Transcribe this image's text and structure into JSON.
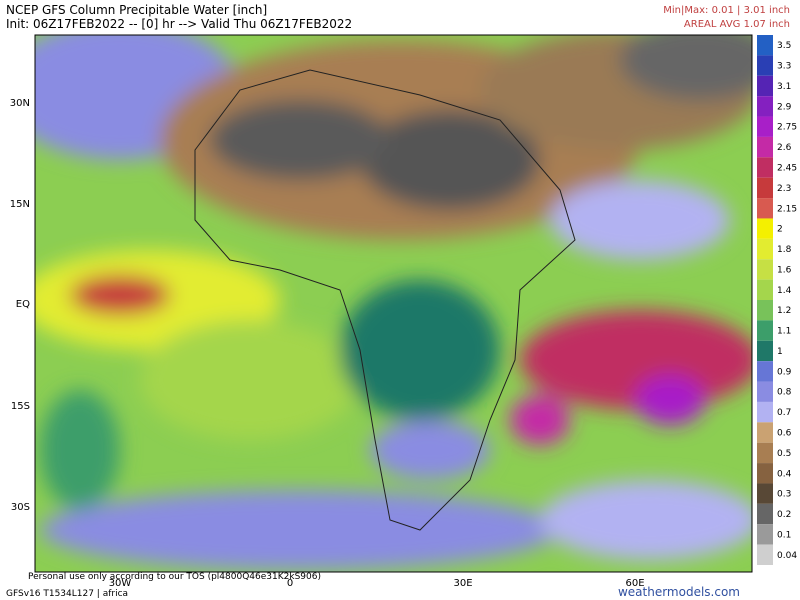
{
  "header": {
    "title": "NCEP GFS Column Precipitable Water [inch]",
    "subtitle": "Init: 06Z17FEB2022 -- [0] hr --> Valid Thu 06Z17FEB2022",
    "minmax": "Min|Max: 0.01 | 3.01 inch",
    "areal_avg": "AREAL AVG 1.07 inch"
  },
  "lat_labels": [
    "30N",
    "15N",
    "EQ",
    "15S",
    "30S"
  ],
  "lon_labels": [
    "30W",
    "0",
    "30E",
    "60E"
  ],
  "colorbar": [
    {
      "label": "3.5",
      "color": "#2360c4"
    },
    {
      "label": "3.3",
      "color": "#2a3fb4"
    },
    {
      "label": "3.1",
      "color": "#5524b4"
    },
    {
      "label": "2.9",
      "color": "#8420c0"
    },
    {
      "label": "2.75",
      "color": "#a81fc8"
    },
    {
      "label": "2.6",
      "color": "#c42aa6"
    },
    {
      "label": "2.45",
      "color": "#c02e62"
    },
    {
      "label": "2.3",
      "color": "#c63a3c"
    },
    {
      "label": "2.15",
      "color": "#d85a50"
    },
    {
      "label": "2",
      "color": "#f4f000"
    },
    {
      "label": "1.8",
      "color": "#e2ec30"
    },
    {
      "label": "1.6",
      "color": "#c6e044"
    },
    {
      "label": "1.4",
      "color": "#a4d64c"
    },
    {
      "label": "1.2",
      "color": "#78c25a"
    },
    {
      "label": "1.1",
      "color": "#3c9e6a"
    },
    {
      "label": "1",
      "color": "#1f7868"
    },
    {
      "label": "0.9",
      "color": "#6676d6"
    },
    {
      "label": "0.8",
      "color": "#8a8ce2"
    },
    {
      "label": "0.7",
      "color": "#b2b2f2"
    },
    {
      "label": "0.6",
      "color": "#caa272"
    },
    {
      "label": "0.5",
      "color": "#a87e52"
    },
    {
      "label": "0.4",
      "color": "#866240"
    },
    {
      "label": "0.3",
      "color": "#584836"
    },
    {
      "label": "0.2",
      "color": "#666666"
    },
    {
      "label": "0.1",
      "color": "#9a9a9a"
    },
    {
      "label": "0.04",
      "color": "#cfcfcf"
    }
  ],
  "footer": {
    "tos": "Personal use only according to our TOS (pl4800Q46e31K2kS906)",
    "model": "GFSv16 T1534L127 | africa",
    "site": "weathermodels.com"
  }
}
